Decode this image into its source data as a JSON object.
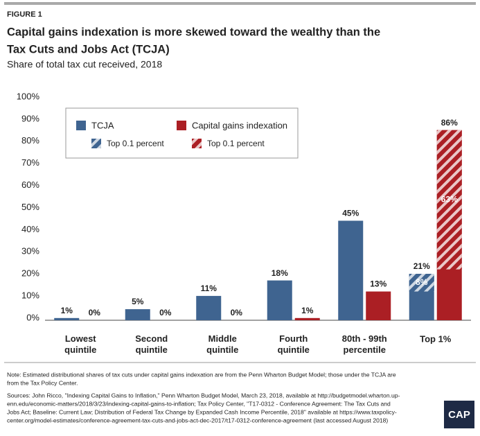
{
  "figure_label": "FIGURE 1",
  "chart_data": {
    "type": "bar",
    "title": [
      "Capital gains indexation is more skewed toward the wealthy than the",
      "Tax Cuts and Jobs Act (TCJA)"
    ],
    "subtitle": "Share of total tax cut received, 2018",
    "categories": [
      "Lowest\nquintile",
      "Second\nquintile",
      "Middle\nquintile",
      "Fourth\nquintile",
      "80th - 99th\npercentile",
      "Top 1%"
    ],
    "series": [
      {
        "name": "TCJA",
        "color": "#3f6490",
        "values": [
          1,
          5,
          11,
          18,
          45,
          21
        ],
        "value_labels": [
          "1%",
          "5%",
          "11%",
          "18%",
          "45%",
          "21%"
        ],
        "sub": {
          "name": "Top 0.1 percent",
          "values": [
            null,
            null,
            null,
            null,
            null,
            8
          ],
          "value_labels": [
            null,
            null,
            null,
            null,
            null,
            "8%"
          ]
        }
      },
      {
        "name": "Capital gains indexation",
        "color": "#ab1f24",
        "values": [
          0,
          0,
          0,
          1,
          13,
          86
        ],
        "value_labels": [
          "0%",
          "0%",
          "0%",
          "1%",
          "13%",
          "86%"
        ],
        "sub": {
          "name": "Top 0.1 percent",
          "values": [
            null,
            null,
            null,
            null,
            null,
            63
          ],
          "value_labels": [
            null,
            null,
            null,
            null,
            null,
            "63%"
          ]
        }
      }
    ],
    "ylim": [
      0,
      100
    ],
    "yticks": [
      {
        "value": 0,
        "label": "0%"
      },
      {
        "value": 10,
        "label": "10%"
      },
      {
        "value": 20,
        "label": "20%"
      },
      {
        "value": 30,
        "label": "30%"
      },
      {
        "value": 40,
        "label": "40%"
      },
      {
        "value": 50,
        "label": "50%"
      },
      {
        "value": 60,
        "label": "60%"
      },
      {
        "value": 70,
        "label": "70%"
      },
      {
        "value": 80,
        "label": "80%"
      },
      {
        "value": 90,
        "label": "90%"
      },
      {
        "value": 100,
        "label": "100%"
      }
    ],
    "grid": false
  },
  "note": [
    "Note: Estimated distributional shares of tax cuts under capital gains indexation are from the Penn Wharton Budget Model; those under the TCJA are",
    "from the Tax Policy Center."
  ],
  "sources": [
    "Sources: John Ricco, \"Indexing Capital Gains to Inflation,\" Penn Wharton Budget Model, March 23, 2018, available at http://budgetmodel.wharton.up-",
    "enn.edu/economic-matters/2018/3/23/indexing-capital-gains-to-inflation; Tax Policy Center, \"T17-0312 - Conference Agreement: The Tax Cuts and",
    "Jobs Act; Baseline: Current Law; Distribution of Federal Tax Change by Expanded Cash Income Percentile, 2018\" available at https://www.taxpolicy-",
    "center.org/model-estimates/conference-agreement-tax-cuts-and-jobs-act-dec-2017/t17-0312-conference-agreement (last accessed August 2018)"
  ],
  "logo": "CAP"
}
